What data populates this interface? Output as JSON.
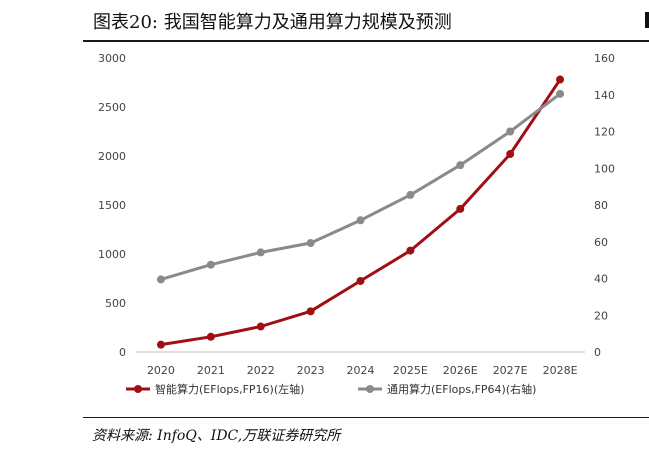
{
  "figure": {
    "title": "图表20:  我国智能算力及通用算力规模及预测",
    "source": "资料来源:  InfoQ、IDC,万联证券研究所"
  },
  "chart_data": {
    "type": "line",
    "categories": [
      "2020",
      "2021",
      "2022",
      "2023",
      "2024",
      "2025E",
      "2026E",
      "2027E",
      "2028E"
    ],
    "left_axis": {
      "ticks": [
        0,
        500,
        1000,
        1500,
        2000,
        2500,
        3000
      ],
      "ylim": [
        0,
        3000
      ]
    },
    "right_axis": {
      "ticks": [
        0,
        20,
        40,
        60,
        80,
        100,
        120,
        140,
        160
      ],
      "ylim": [
        0,
        160
      ]
    },
    "series": [
      {
        "name": "智能算力(EFlops,FP16)(左轴)",
        "axis": "left",
        "color": "#a00f12",
        "values": [
          75,
          155,
          260,
          415,
          725,
          1035,
          1460,
          2020,
          2780
        ]
      },
      {
        "name": "通用算力(EFlops,FP64)(右轴)",
        "axis": "right",
        "color": "#8a8a8a",
        "values": [
          39.5,
          47.5,
          54.2,
          59.3,
          71.7,
          85.5,
          101.7,
          120,
          140.5
        ]
      }
    ],
    "legend_position": "bottom",
    "grid": false
  }
}
